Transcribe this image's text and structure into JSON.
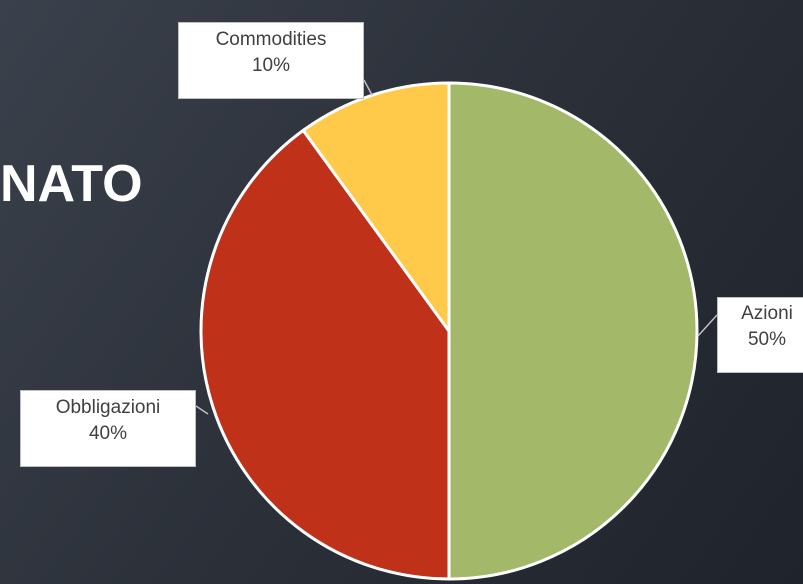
{
  "slide": {
    "title_fragment": "NATO"
  },
  "chart_data": {
    "type": "pie",
    "slices": [
      {
        "label": "Azioni",
        "value": 50,
        "pct_label": "50%",
        "color": "#A3B868"
      },
      {
        "label": "Obbligazioni",
        "value": 40,
        "pct_label": "40%",
        "color": "#C0311A"
      },
      {
        "label": "Commodities",
        "value": 10,
        "pct_label": "10%",
        "color": "#FFC94A"
      }
    ]
  }
}
